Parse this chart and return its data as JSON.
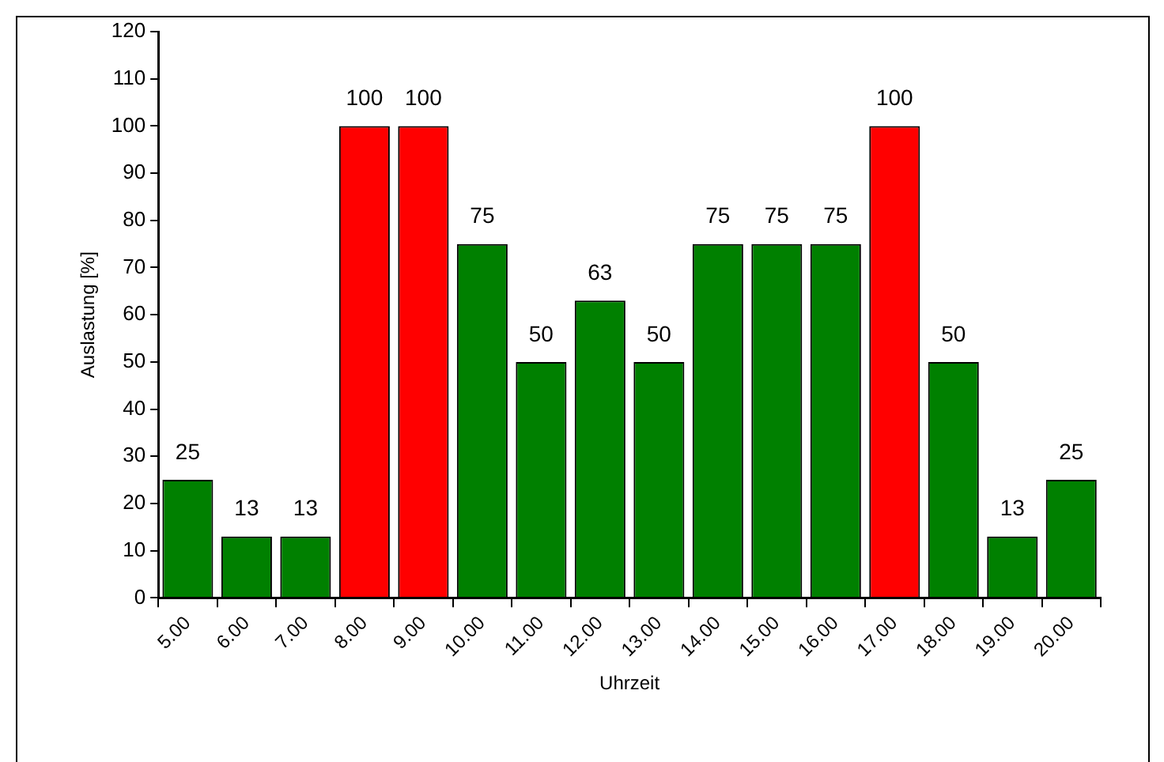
{
  "chart_data": {
    "type": "bar",
    "xlabel": "Uhrzeit",
    "ylabel": "Auslastung [%]",
    "categories": [
      "5.00",
      "6.00",
      "7.00",
      "8.00",
      "9.00",
      "10.00",
      "11.00",
      "12.00",
      "13.00",
      "14.00",
      "15.00",
      "16.00",
      "17.00",
      "18.00",
      "19.00",
      "20.00"
    ],
    "values": [
      25,
      13,
      13,
      100,
      100,
      75,
      50,
      63,
      50,
      75,
      75,
      75,
      100,
      50,
      13,
      25
    ],
    "colors": [
      "#008000",
      "#008000",
      "#008000",
      "#ff0000",
      "#ff0000",
      "#008000",
      "#008000",
      "#008000",
      "#008000",
      "#008000",
      "#008000",
      "#008000",
      "#ff0000",
      "#008000",
      "#008000",
      "#008000"
    ],
    "ylim": [
      0,
      120
    ],
    "yticks": [
      0,
      10,
      20,
      30,
      40,
      50,
      60,
      70,
      80,
      90,
      100,
      110,
      120
    ],
    "grid": false,
    "legend": false,
    "data_labels": true
  }
}
